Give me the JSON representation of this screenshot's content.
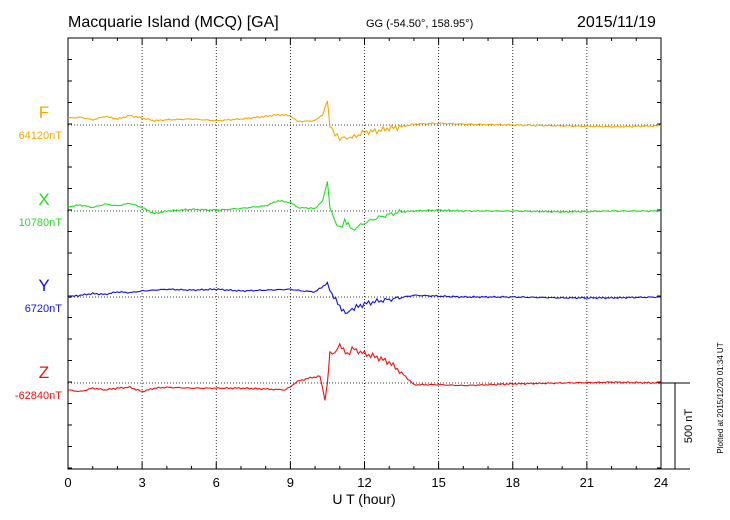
{
  "header": {
    "station": "Macquarie Island (MCQ)  [GA]",
    "coords": "GG (-54.50°, 158.95°)",
    "date": "2015/11/19"
  },
  "plotted_note": "Plotted at 2015/12/20 01:34 UT",
  "scale_label": "500 nT",
  "chart_data": {
    "type": "line",
    "xlabel": "U T (hour)",
    "xlim": [
      0,
      24
    ],
    "x_ticks": [
      0,
      3,
      6,
      9,
      12,
      15,
      18,
      21,
      24
    ],
    "x_tick_labels": [
      "0",
      "3",
      "6",
      "9",
      "12",
      "15",
      "18",
      "21",
      "24"
    ],
    "scale_bar_nT": 500,
    "grid": true,
    "series": [
      {
        "name": "F",
        "baseline_label": "64120nT",
        "color": "#f2a900",
        "x": [
          0,
          0.5,
          1,
          1.5,
          2,
          2.5,
          3,
          3.5,
          4,
          5,
          6,
          7,
          8,
          8.5,
          9,
          9.3,
          10,
          10.3,
          10.5,
          10.6,
          10.8,
          11,
          11.2,
          11.5,
          12,
          12.5,
          13,
          13.5,
          14,
          15,
          16,
          18,
          20,
          22,
          24
        ],
        "y": [
          40,
          45,
          30,
          50,
          35,
          55,
          40,
          25,
          30,
          35,
          25,
          35,
          50,
          60,
          55,
          20,
          25,
          60,
          140,
          -10,
          -50,
          -80,
          -70,
          -75,
          -40,
          -35,
          -20,
          -10,
          5,
          10,
          5,
          0,
          -5,
          -10,
          -5
        ]
      },
      {
        "name": "X",
        "baseline_label": "10780nT",
        "color": "#22dd22",
        "x": [
          0,
          0.5,
          1,
          1.5,
          2,
          2.5,
          3,
          3.5,
          4,
          5,
          6,
          7,
          8,
          8.5,
          9,
          9.3,
          10,
          10.3,
          10.5,
          10.6,
          10.8,
          11,
          11.2,
          11.5,
          12,
          12.5,
          13,
          13.5,
          14,
          15,
          16,
          18,
          20,
          22,
          24
        ],
        "y": [
          25,
          35,
          20,
          40,
          30,
          45,
          20,
          -15,
          0,
          10,
          5,
          15,
          30,
          60,
          50,
          20,
          15,
          60,
          170,
          20,
          -60,
          -100,
          -60,
          -110,
          -70,
          -40,
          -20,
          -5,
          0,
          5,
          0,
          0,
          -5,
          0,
          0
        ]
      },
      {
        "name": "Y",
        "baseline_label": "6720nT",
        "color": "#1010dd",
        "x": [
          0,
          0.5,
          1,
          1.5,
          2,
          2.5,
          3,
          3.5,
          4,
          5,
          6,
          7,
          8,
          9,
          9.5,
          10,
          10.5,
          10.6,
          11,
          11.3,
          11.5,
          12,
          12.5,
          13,
          14,
          15,
          16,
          18,
          20,
          22,
          24
        ],
        "y": [
          0,
          10,
          20,
          15,
          30,
          25,
          35,
          40,
          45,
          40,
          45,
          35,
          40,
          45,
          35,
          30,
          80,
          40,
          -60,
          -90,
          -70,
          -40,
          -25,
          -15,
          10,
          5,
          0,
          0,
          -5,
          -5,
          0
        ]
      },
      {
        "name": "Z",
        "baseline_label": "-62840nT",
        "color": "#ee1111",
        "x": [
          0,
          0.5,
          1,
          1.5,
          2,
          2.5,
          3,
          3.5,
          4,
          5,
          6,
          7,
          8,
          8.8,
          9,
          9.3,
          9.8,
          10.2,
          10.4,
          10.5,
          10.6,
          10.8,
          11,
          11.3,
          11.5,
          12,
          12.5,
          13,
          13.5,
          14,
          15,
          16,
          18,
          20,
          22,
          24
        ],
        "y": [
          -40,
          -50,
          -30,
          -40,
          -30,
          -25,
          -50,
          -30,
          -25,
          -30,
          -30,
          -30,
          -35,
          -40,
          -20,
          10,
          30,
          40,
          -100,
          0,
          180,
          170,
          230,
          160,
          200,
          170,
          150,
          120,
          60,
          -10,
          -10,
          -15,
          -5,
          0,
          5,
          0
        ]
      }
    ]
  }
}
